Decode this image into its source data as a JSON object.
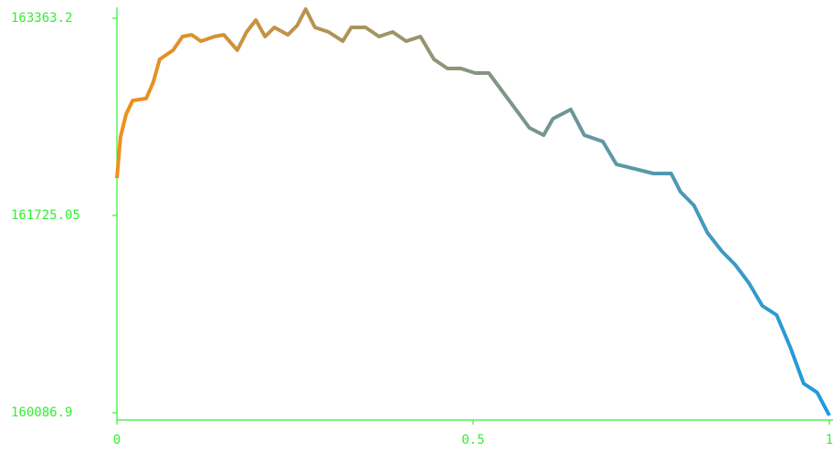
{
  "chart_data": {
    "type": "line",
    "x": [
      0,
      0.005,
      0.013,
      0.022,
      0.041,
      0.051,
      0.06,
      0.079,
      0.092,
      0.105,
      0.118,
      0.137,
      0.15,
      0.169,
      0.182,
      0.195,
      0.208,
      0.221,
      0.24,
      0.253,
      0.265,
      0.278,
      0.297,
      0.317,
      0.329,
      0.349,
      0.368,
      0.387,
      0.406,
      0.426,
      0.445,
      0.464,
      0.483,
      0.503,
      0.522,
      0.541,
      0.56,
      0.579,
      0.599,
      0.612,
      0.637,
      0.656,
      0.682,
      0.701,
      0.727,
      0.753,
      0.778,
      0.791,
      0.81,
      0.829,
      0.849,
      0.868,
      0.887,
      0.906,
      0.926,
      0.945,
      0.964,
      0.983,
      1
    ],
    "series": [
      {
        "colors": [
          "#f0901a",
          "#1e9be0"
        ],
        "values": [
          162036,
          162377,
          162567,
          162680,
          162696,
          162832,
          163022,
          163098,
          163211,
          163226,
          163173,
          163211,
          163226,
          163098,
          163249,
          163348,
          163211,
          163287,
          163226,
          163302,
          163439,
          163287,
          163249,
          163173,
          163287,
          163287,
          163211,
          163249,
          163173,
          163211,
          163022,
          162946,
          162946,
          162908,
          162908,
          162756,
          162605,
          162453,
          162392,
          162529,
          162605,
          162392,
          162339,
          162150,
          162112,
          162074,
          162074,
          161922,
          161808,
          161581,
          161429,
          161315,
          161164,
          160974,
          160898,
          160633,
          160329,
          160254,
          160064
        ]
      }
    ],
    "xlim": [
      0,
      1
    ],
    "ylim": [
      160026,
      163454
    ],
    "xticks": [
      0,
      0.5,
      1
    ],
    "yticks": [
      160086.9,
      161725.05,
      163363.2
    ],
    "axis_color": "#33ee33"
  }
}
